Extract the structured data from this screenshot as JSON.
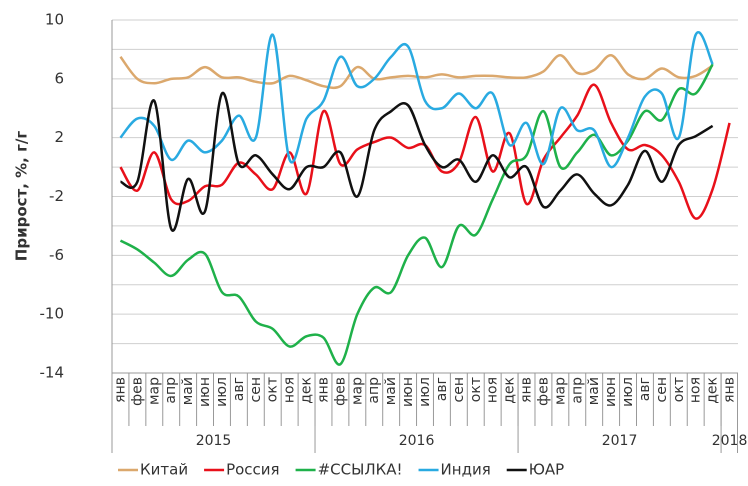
{
  "chart_data": {
    "type": "line",
    "ylabel": "Прирост, %, г/г",
    "categories": [
      "янв",
      "фев",
      "мар",
      "апр",
      "май",
      "июн",
      "июл",
      "авг",
      "сен",
      "окт",
      "ноя",
      "дек",
      "янв",
      "фев",
      "мар",
      "апр",
      "май",
      "июн",
      "июл",
      "авг",
      "сен",
      "окт",
      "ноя",
      "дек",
      "янв",
      "фев",
      "мар",
      "апр",
      "май",
      "июн",
      "июл",
      "авг",
      "сен",
      "окт",
      "ноя",
      "дек",
      "янв"
    ],
    "years": [
      "2015",
      "2016",
      "2017",
      "2018"
    ],
    "ylim": [
      -14,
      10
    ],
    "yticks": [
      10,
      6,
      2,
      -2,
      -6,
      -10,
      -14
    ],
    "ygrid": [
      8,
      4,
      0,
      -4,
      -8,
      -12
    ],
    "grid": true,
    "smooth": true,
    "legend": "bottom",
    "series": [
      {
        "name": "Китай",
        "color": "#dba86d",
        "values": [
          7.5,
          6,
          5.7,
          6,
          6.1,
          6.8,
          6.1,
          6.1,
          5.8,
          5.7,
          6.2,
          5.9,
          5.5,
          5.5,
          6.8,
          6,
          6.1,
          6.2,
          6.1,
          6.3,
          6.1,
          6.2,
          6.2,
          6.1,
          6.1,
          6.5,
          7.6,
          6.4,
          6.6,
          7.6,
          6.3,
          6,
          6.7,
          6.1,
          6.2,
          6.9,
          null
        ]
      },
      {
        "name": "Россия",
        "color": "#e8101a",
        "values": [
          0,
          -1.6,
          1,
          -2.2,
          -2.3,
          -1.3,
          -1.2,
          0.3,
          -0.5,
          -1.5,
          1,
          -1.8,
          3.8,
          0.2,
          1.2,
          1.7,
          2,
          1.3,
          1.5,
          -0.3,
          0.3,
          3.4,
          -0.3,
          2.3,
          -2.5,
          0.5,
          2,
          3.5,
          5.6,
          3,
          1.2,
          1.5,
          0.8,
          -1,
          -3.5,
          -1.5,
          3
        ]
      },
      {
        "name": "#ССЫЛКА!",
        "color": "#1fb14a",
        "values": [
          -5,
          -5.6,
          -6.5,
          -7.4,
          -6.3,
          -5.9,
          -8.5,
          -8.8,
          -10.5,
          -11,
          -12.2,
          -11.5,
          -11.6,
          -13.4,
          -10,
          -8.2,
          -8.5,
          -6,
          -4.8,
          -6.8,
          -4,
          -4.6,
          -2.2,
          0.2,
          0.8,
          3.8,
          0,
          1,
          2.2,
          0.8,
          1.8,
          3.8,
          3.2,
          5.3,
          5,
          7,
          null
        ]
      },
      {
        "name": "Индия",
        "color": "#29aae1",
        "values": [
          2,
          3.3,
          2.8,
          0.5,
          1.8,
          1,
          1.8,
          3.5,
          2,
          9,
          0.5,
          3.3,
          4.5,
          7.5,
          5.5,
          6,
          7.5,
          8.2,
          4.5,
          4,
          5,
          4,
          5,
          1.5,
          3,
          0.2,
          4,
          2.5,
          2.5,
          0,
          2,
          4.8,
          5,
          2,
          9,
          7,
          null
        ]
      },
      {
        "name": "ЮАР",
        "color": "#111111",
        "values": [
          -1,
          -1,
          4.5,
          -4.2,
          -0.8,
          -3,
          5,
          0.2,
          0.8,
          -0.5,
          -1.5,
          0,
          0,
          1,
          -2,
          2.5,
          3.8,
          4.2,
          1.5,
          0,
          0.5,
          -1,
          0.8,
          -0.7,
          0,
          -2.7,
          -1.6,
          -0.5,
          -1.8,
          -2.6,
          -1.2,
          1.1,
          -1,
          1.5,
          2.1,
          2.8,
          null
        ]
      }
    ]
  }
}
